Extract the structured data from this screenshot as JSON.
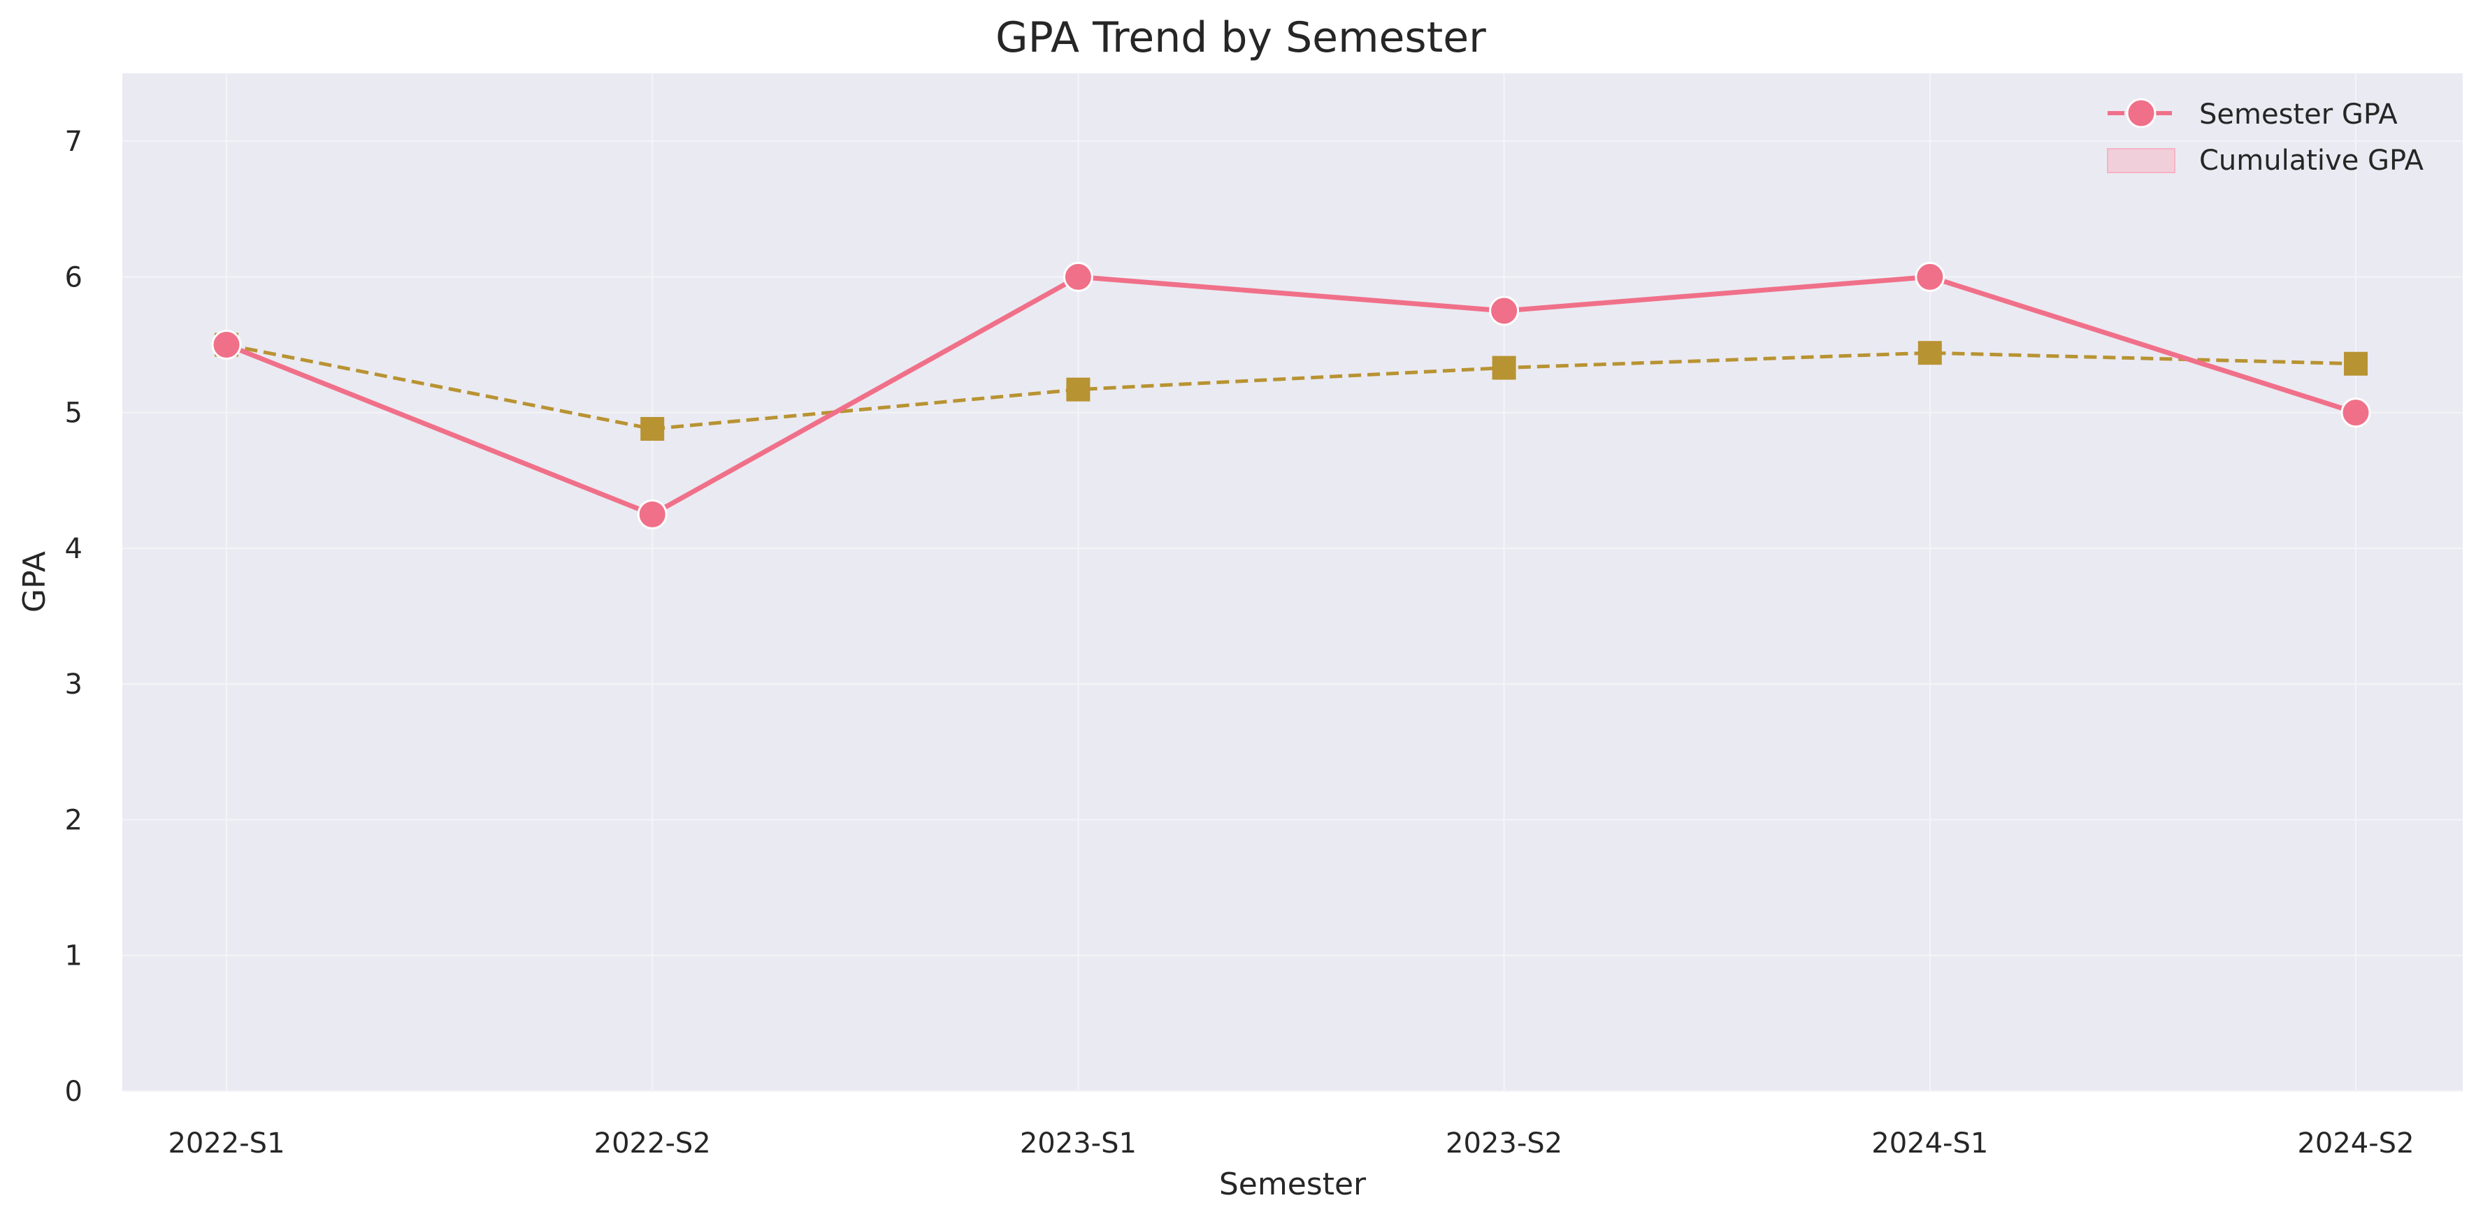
{
  "chart_data": {
    "type": "line",
    "title": "GPA Trend by Semester",
    "xlabel": "Semester",
    "ylabel": "GPA",
    "categories": [
      "2022-S1",
      "2022-S2",
      "2023-S1",
      "2023-S2",
      "2024-S1",
      "2024-S2"
    ],
    "ylim": [
      0,
      7.5
    ],
    "yticks": [
      0,
      1,
      2,
      3,
      4,
      5,
      6,
      7
    ],
    "grid": true,
    "legend_position": "top-right",
    "series": [
      {
        "name": "Semester GPA",
        "values": [
          5.5,
          4.25,
          6.0,
          5.75,
          6.0,
          5.0
        ],
        "color": "#f07089",
        "marker": "circle",
        "line_style": "solid"
      },
      {
        "name": "Cumulative GPA",
        "values": [
          5.5,
          4.88,
          5.17,
          5.33,
          5.44,
          5.36
        ],
        "color": "#b89332",
        "marker": "square",
        "line_style": "dashed"
      }
    ],
    "legend": [
      {
        "label": "Semester GPA",
        "symbol": "line-circle",
        "color": "#f07089"
      },
      {
        "label": "Cumulative GPA",
        "symbol": "patch",
        "color": "#f5b3c4"
      }
    ],
    "colors": {
      "plot_background": "#eaeaf2",
      "grid": "#f4f4f8"
    }
  }
}
